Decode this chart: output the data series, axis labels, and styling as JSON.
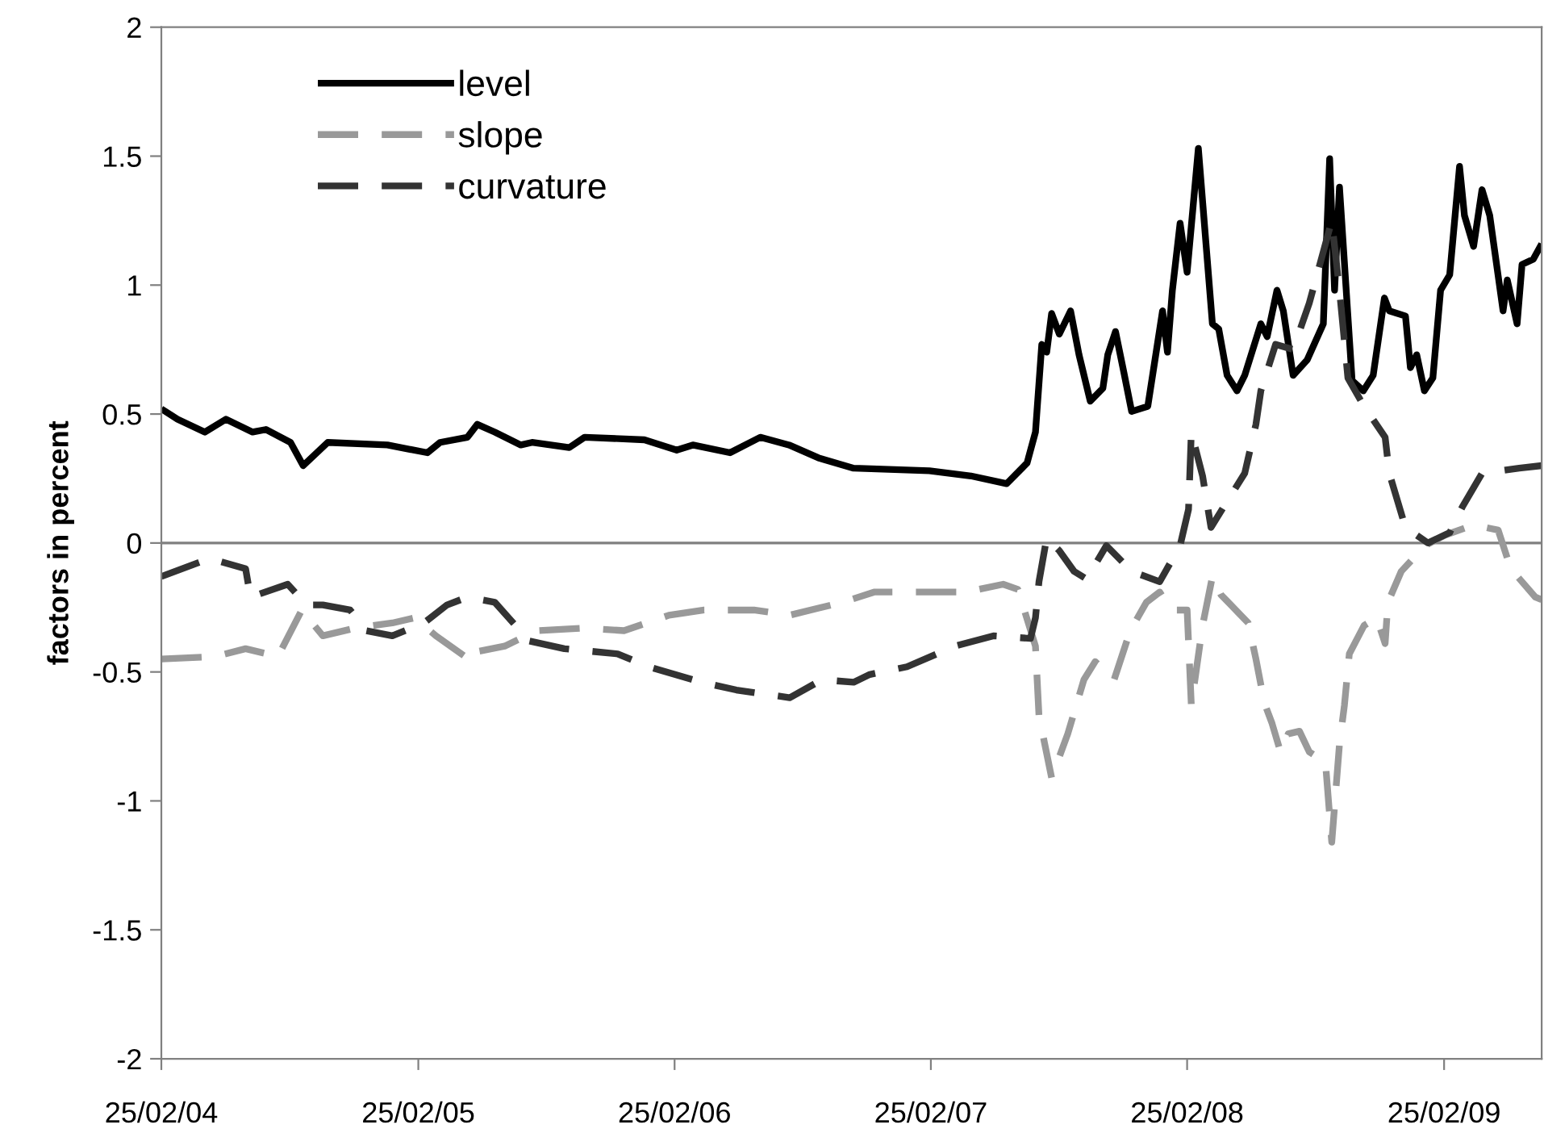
{
  "chart_data": {
    "type": "line",
    "ylabel": "factors in percent",
    "xlim": [
      "2004-02-25",
      "2009-07-14"
    ],
    "xticks": [
      {
        "value": "2004-02-25",
        "label": "25/02/04"
      },
      {
        "value": "2005-02-25",
        "label": "25/02/05"
      },
      {
        "value": "2006-02-25",
        "label": "25/02/06"
      },
      {
        "value": "2007-02-25",
        "label": "25/02/07"
      },
      {
        "value": "2008-02-25",
        "label": "25/02/08"
      },
      {
        "value": "2009-02-25",
        "label": "25/02/09"
      }
    ],
    "ylim": [
      -2,
      2
    ],
    "yticks": [
      {
        "value": -2,
        "label": "-2"
      },
      {
        "value": -1.5,
        "label": "-1.5"
      },
      {
        "value": -1,
        "label": "-1"
      },
      {
        "value": -0.5,
        "label": "-0.5"
      },
      0,
      0.5,
      1,
      1.5,
      2
    ],
    "grid": false,
    "legend": "top left",
    "marker": "none",
    "ref_lines": [
      {
        "axis": "y",
        "value": 0,
        "color": "#808080",
        "line_style": "solid"
      }
    ],
    "series": [
      {
        "name": "level",
        "color": "#000000",
        "line_style": "solid",
        "x": [
          "2004-02-25",
          "2004-03-19",
          "2004-04-27",
          "2004-05-27",
          "2004-07-04",
          "2004-07-23",
          "2004-08-27",
          "2004-09-14",
          "2004-10-19",
          "2005-01-12",
          "2005-03-10",
          "2005-03-28",
          "2005-05-06",
          "2005-05-20",
          "2005-06-14",
          "2005-07-21",
          "2005-08-06",
          "2005-09-28",
          "2005-10-20",
          "2006-01-13",
          "2006-02-28",
          "2006-03-23",
          "2006-05-15",
          "2006-06-27",
          "2006-08-07",
          "2006-09-18",
          "2006-11-07",
          "2007-02-23",
          "2007-04-23",
          "2007-06-13",
          "2007-07-12",
          "2007-07-24",
          "2007-08-02",
          "2007-08-09",
          "2007-08-16",
          "2007-08-27",
          "2007-09-12",
          "2007-09-24",
          "2007-10-10",
          "2007-10-28",
          "2007-11-04",
          "2007-11-15",
          "2007-11-27",
          "2007-12-08",
          "2007-12-31",
          "2008-01-21",
          "2008-01-28",
          "2008-02-04",
          "2008-02-15",
          "2008-02-25",
          "2008-03-12",
          "2008-04-01",
          "2008-04-10",
          "2008-04-22",
          "2008-05-06",
          "2008-05-17",
          "2008-06-09",
          "2008-06-18",
          "2008-07-02",
          "2008-07-11",
          "2008-07-25",
          "2008-08-14",
          "2008-09-06",
          "2008-09-15",
          "2008-09-22",
          "2008-09-29",
          "2008-10-17",
          "2008-11-02",
          "2008-11-16",
          "2008-12-02",
          "2008-12-09",
          "2009-01-01",
          "2009-01-08",
          "2009-01-17",
          "2009-01-28",
          "2009-02-09",
          "2009-02-20",
          "2009-03-05",
          "2009-03-19",
          "2009-03-26",
          "2009-04-08",
          "2009-04-20",
          "2009-05-01",
          "2009-05-20",
          "2009-05-26",
          "2009-06-09",
          "2009-06-16",
          "2009-07-02",
          "2009-07-14"
        ],
        "values": [
          0.52,
          0.48,
          0.43,
          0.48,
          0.43,
          0.44,
          0.39,
          0.3,
          0.39,
          0.38,
          0.35,
          0.39,
          0.41,
          0.46,
          0.43,
          0.38,
          0.39,
          0.37,
          0.41,
          0.4,
          0.36,
          0.38,
          0.35,
          0.41,
          0.38,
          0.33,
          0.29,
          0.28,
          0.26,
          0.23,
          0.31,
          0.43,
          0.77,
          0.74,
          0.89,
          0.81,
          0.9,
          0.73,
          0.55,
          0.6,
          0.73,
          0.82,
          0.66,
          0.51,
          0.53,
          0.9,
          0.74,
          0.98,
          1.24,
          1.05,
          1.53,
          0.85,
          0.83,
          0.65,
          0.59,
          0.65,
          0.85,
          0.8,
          0.98,
          0.9,
          0.65,
          0.71,
          0.85,
          1.49,
          0.98,
          1.38,
          0.63,
          0.59,
          0.65,
          0.95,
          0.9,
          0.88,
          0.68,
          0.73,
          0.59,
          0.64,
          0.98,
          1.04,
          1.46,
          1.27,
          1.15,
          1.37,
          1.27,
          0.9,
          1.02,
          0.85,
          1.08,
          1.1,
          1.16
        ]
      },
      {
        "name": "slope",
        "color": "#999999",
        "line_style": "dashed",
        "x": [
          "2004-02-25",
          "2004-05-12",
          "2004-06-24",
          "2004-08-09",
          "2004-09-12",
          "2004-10-12",
          "2004-11-27",
          "2005-01-19",
          "2005-02-20",
          "2005-03-22",
          "2005-05-13",
          "2005-05-22",
          "2005-06-28",
          "2005-08-13",
          "2005-10-21",
          "2005-12-15",
          "2006-02-17",
          "2006-04-08",
          "2006-06-18",
          "2006-08-08",
          "2006-10-22",
          "2006-12-07",
          "2007-02-24",
          "2007-04-16",
          "2007-06-08",
          "2007-06-29",
          "2007-07-24",
          "2007-07-29",
          "2007-08-16",
          "2007-09-08",
          "2007-10-01",
          "2007-10-17",
          "2007-11-13",
          "2007-12-06",
          "2007-12-29",
          "2008-01-17",
          "2008-02-02",
          "2008-02-25",
          "2008-03-02",
          "2008-03-18",
          "2008-04-01",
          "2008-04-13",
          "2008-05-22",
          "2008-06-02",
          "2008-06-14",
          "2008-06-25",
          "2008-07-07",
          "2008-07-18",
          "2008-08-03",
          "2008-08-17",
          "2008-09-09",
          "2008-09-18",
          "2008-09-29",
          "2008-10-06",
          "2008-10-13",
          "2008-11-03",
          "2008-11-21",
          "2008-12-03",
          "2008-12-07",
          "2008-12-26",
          "2009-01-29",
          "2009-02-26",
          "2009-04-08",
          "2009-05-13",
          "2009-05-31",
          "2009-07-05",
          "2009-07-14"
        ],
        "values": [
          -0.45,
          -0.44,
          -0.41,
          -0.44,
          -0.26,
          -0.36,
          -0.33,
          -0.31,
          -0.29,
          -0.36,
          -0.46,
          -0.42,
          -0.4,
          -0.34,
          -0.33,
          -0.34,
          -0.28,
          -0.26,
          -0.26,
          -0.28,
          -0.23,
          -0.19,
          -0.19,
          -0.19,
          -0.16,
          -0.18,
          -0.4,
          -0.67,
          -0.91,
          -0.74,
          -0.53,
          -0.46,
          -0.53,
          -0.34,
          -0.23,
          -0.19,
          -0.26,
          -0.26,
          -0.63,
          -0.32,
          -0.13,
          -0.2,
          -0.31,
          -0.45,
          -0.62,
          -0.7,
          -0.81,
          -0.74,
          -0.73,
          -0.81,
          -0.85,
          -1.16,
          -0.78,
          -0.63,
          -0.43,
          -0.32,
          -0.29,
          -0.39,
          -0.23,
          -0.11,
          -0.01,
          0.03,
          0.07,
          0.05,
          -0.1,
          -0.21,
          -0.22
        ]
      },
      {
        "name": "curvature",
        "color": "#333333",
        "line_style": "dashed",
        "x": [
          "2004-02-25",
          "2004-05-04",
          "2004-06-24",
          "2004-07-01",
          "2004-08-23",
          "2004-09-19",
          "2004-10-12",
          "2004-11-20",
          "2004-12-13",
          "2005-01-19",
          "2005-03-05",
          "2005-04-07",
          "2005-05-06",
          "2005-06-14",
          "2005-08-02",
          "2005-09-21",
          "2005-12-06",
          "2006-01-19",
          "2006-04-04",
          "2006-05-24",
          "2006-08-08",
          "2006-09-23",
          "2006-11-07",
          "2006-11-30",
          "2007-01-22",
          "2007-03-31",
          "2007-05-25",
          "2007-07-17",
          "2007-07-24",
          "2007-07-29",
          "2007-08-09",
          "2007-08-27",
          "2007-09-17",
          "2007-10-05",
          "2007-11-02",
          "2007-12-08",
          "2008-01-17",
          "2008-02-15",
          "2008-02-27",
          "2008-03-02",
          "2008-03-18",
          "2008-03-30",
          "2008-04-17",
          "2008-05-17",
          "2008-06-02",
          "2008-06-09",
          "2008-06-30",
          "2008-07-25",
          "2008-08-17",
          "2008-09-18",
          "2008-09-29",
          "2008-10-11",
          "2008-11-03",
          "2008-12-03",
          "2008-12-09",
          "2009-01-01",
          "2009-02-02",
          "2009-03-05",
          "2009-03-23",
          "2009-04-20",
          "2009-06-12",
          "2009-07-14"
        ],
        "values": [
          -0.13,
          -0.06,
          -0.1,
          -0.21,
          -0.16,
          -0.24,
          -0.24,
          -0.26,
          -0.34,
          -0.36,
          -0.31,
          -0.24,
          -0.21,
          -0.23,
          -0.38,
          -0.41,
          -0.43,
          -0.48,
          -0.54,
          -0.57,
          -0.6,
          -0.53,
          -0.54,
          -0.51,
          -0.48,
          -0.4,
          -0.36,
          -0.37,
          -0.29,
          -0.15,
          0.02,
          -0.03,
          -0.11,
          -0.14,
          -0.01,
          -0.11,
          -0.15,
          -0.01,
          0.13,
          0.43,
          0.26,
          0.06,
          0.14,
          0.27,
          0.46,
          0.59,
          0.77,
          0.75,
          0.93,
          1.25,
          0.98,
          0.64,
          0.53,
          0.41,
          0.27,
          0.06,
          0.0,
          0.04,
          0.14,
          0.27,
          0.29,
          0.3
        ]
      }
    ]
  }
}
